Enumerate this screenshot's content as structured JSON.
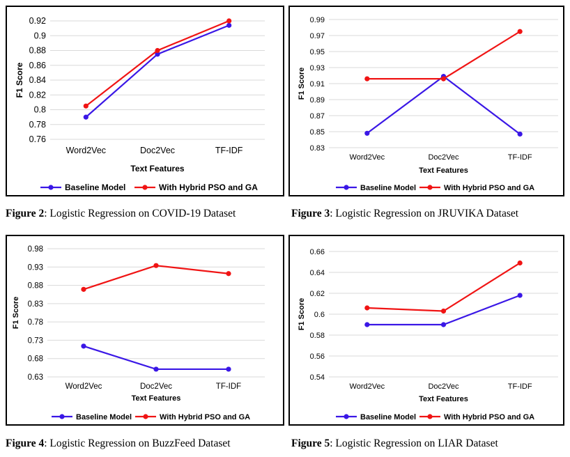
{
  "chart_data": [
    {
      "type": "line",
      "categories": [
        "Word2Vec",
        "Doc2Vec",
        "TF-IDF"
      ],
      "series": [
        {
          "name": "Baseline Model",
          "color": "#3a17e6",
          "values": [
            0.79,
            0.875,
            0.914
          ]
        },
        {
          "name": "With Hybrid PSO and GA",
          "color": "#f01414",
          "values": [
            0.805,
            0.88,
            0.92
          ]
        }
      ],
      "xlabel": "Text Features",
      "ylabel": "F1 Score",
      "ylim": [
        0.76,
        0.92
      ],
      "yticks": [
        "0.76",
        "0.78",
        "0.8",
        "0.82",
        "0.84",
        "0.86",
        "0.88",
        "0.9",
        "0.92"
      ],
      "grid": true,
      "legend": "bottom",
      "caption_label": "Figure 2",
      "caption_text": ": Logistic Regression on COVID-19 Dataset"
    },
    {
      "type": "line",
      "categories": [
        "Word2Vec",
        "Doc2Vec",
        "TF-IDF"
      ],
      "series": [
        {
          "name": "Baseline Model",
          "color": "#3a17e6",
          "values": [
            0.848,
            0.919,
            0.847
          ]
        },
        {
          "name": "With Hybrid PSO and GA",
          "color": "#f01414",
          "values": [
            0.916,
            0.916,
            0.975
          ]
        }
      ],
      "xlabel": "Text Features",
      "ylabel": "F1 Score",
      "ylim": [
        0.83,
        0.99
      ],
      "yticks": [
        "0.83",
        "0.85",
        "0.87",
        "0.89",
        "0.91",
        "0.93",
        "0.95",
        "0.97",
        "0.99"
      ],
      "grid": true,
      "legend": "bottom",
      "caption_label": "Figure 3",
      "caption_text": ": Logistic Regression on JRUVIKA Dataset"
    },
    {
      "type": "line",
      "categories": [
        "Word2Vec",
        "Doc2Vec",
        "TF-IDF"
      ],
      "series": [
        {
          "name": "Baseline Model",
          "color": "#3a17e6",
          "values": [
            0.714,
            0.651,
            0.651
          ]
        },
        {
          "name": "With Hybrid PSO and GA",
          "color": "#f01414",
          "values": [
            0.869,
            0.934,
            0.912
          ]
        }
      ],
      "xlabel": "Text Features",
      "ylabel": "F1 Score",
      "ylim": [
        0.63,
        0.98
      ],
      "yticks": [
        "0.63",
        "0.68",
        "0.73",
        "0.78",
        "0.83",
        "0.88",
        "0.93",
        "0.98"
      ],
      "grid": true,
      "legend": "bottom",
      "caption_label": "Figure 4",
      "caption_text": ": Logistic Regression on BuzzFeed Dataset"
    },
    {
      "type": "line",
      "categories": [
        "Word2Vec",
        "Doc2Vec",
        "TF-IDF"
      ],
      "series": [
        {
          "name": "Baseline Model",
          "color": "#3a17e6",
          "values": [
            0.59,
            0.59,
            0.618
          ]
        },
        {
          "name": "With Hybrid PSO and GA",
          "color": "#f01414",
          "values": [
            0.606,
            0.603,
            0.649
          ]
        }
      ],
      "xlabel": "Text Features",
      "ylabel": "F1 Score",
      "ylim": [
        0.54,
        0.66
      ],
      "yticks": [
        "0.54",
        "0.56",
        "0.58",
        "0.6",
        "0.62",
        "0.64",
        "0.66"
      ],
      "grid": true,
      "legend": "bottom",
      "caption_label": "Figure 5",
      "caption_text": ": Logistic Regression on LIAR Dataset"
    }
  ]
}
